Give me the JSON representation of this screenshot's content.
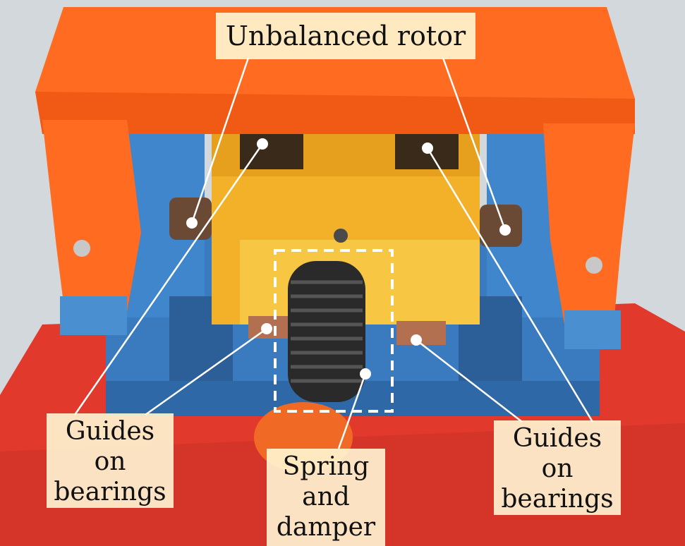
{
  "labels": {
    "rotor": "Unbalanced rotor",
    "guides_left": [
      "Guides",
      "on",
      "bearings"
    ],
    "spring": [
      "Spring",
      "and",
      "damper"
    ],
    "guides_right": [
      "Guides",
      "on",
      "bearings"
    ]
  },
  "colors": {
    "frame_orange": "#ff6a1f",
    "rotor_yellow": "#f4b82a",
    "base_blue": "#3d7fc4",
    "plate_red": "#e8352a",
    "label_bg": "#fff8d2",
    "leader_line": "#ffffff"
  }
}
